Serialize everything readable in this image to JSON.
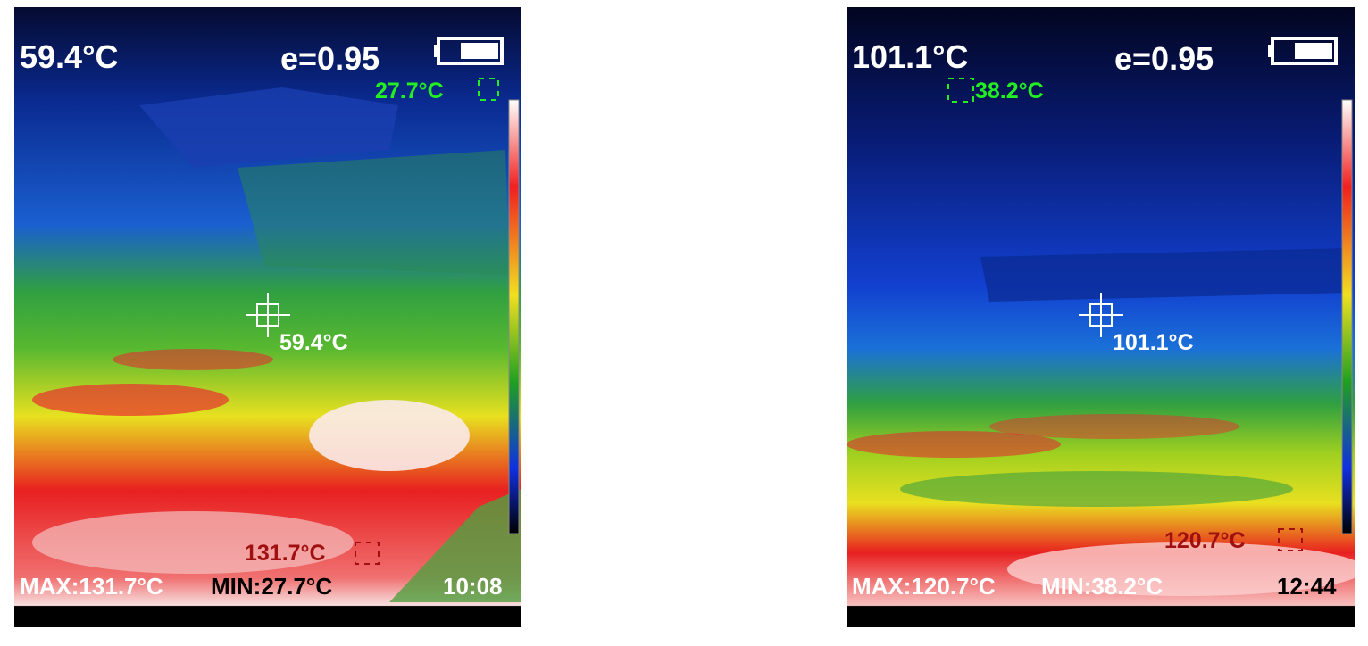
{
  "panels": [
    {
      "center_temp": "59.4°C",
      "emissivity": "e=0.95",
      "min_spot": "27.7°C",
      "crosshair_temp": "59.4°C",
      "max_spot": "131.7°C",
      "max_label": "MAX:131.7°C",
      "min_label": "MIN:27.7°C",
      "time": "10:08"
    },
    {
      "center_temp": "101.1°C",
      "emissivity": "e=0.95",
      "min_spot": "38.2°C",
      "crosshair_temp": "101.1°C",
      "max_spot": "120.7°C",
      "max_label": "MAX:120.7°C",
      "min_label": "MIN:38.2°C",
      "time": "12:44"
    }
  ]
}
